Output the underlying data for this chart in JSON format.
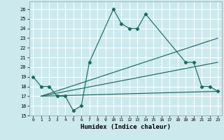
{
  "xlabel": "Humidex (Indice chaleur)",
  "xlim": [
    -0.5,
    23.5
  ],
  "ylim": [
    15,
    26.8
  ],
  "yticks": [
    15,
    16,
    17,
    18,
    19,
    20,
    21,
    22,
    23,
    24,
    25,
    26
  ],
  "xticks": [
    0,
    1,
    2,
    3,
    4,
    5,
    6,
    7,
    8,
    9,
    10,
    11,
    12,
    13,
    14,
    15,
    16,
    17,
    18,
    19,
    20,
    21,
    22,
    23
  ],
  "bg_color": "#cce9ee",
  "grid_color": "#ffffff",
  "line_color": "#1a6b60",
  "main_line": {
    "x": [
      0,
      1,
      2,
      3,
      4,
      5,
      6,
      7,
      10,
      11,
      12,
      13,
      14,
      19,
      20,
      21,
      22,
      23
    ],
    "y": [
      19,
      18,
      18,
      17,
      17,
      15.5,
      16,
      20.5,
      26,
      24.5,
      24,
      24,
      25.5,
      20.5,
      20.5,
      18,
      18,
      17.5
    ]
  },
  "diag_lines": [
    {
      "x": [
        1,
        23
      ],
      "y": [
        17,
        17.5
      ]
    },
    {
      "x": [
        1,
        23
      ],
      "y": [
        17,
        20.5
      ]
    },
    {
      "x": [
        1,
        23
      ],
      "y": [
        17,
        23
      ]
    }
  ]
}
